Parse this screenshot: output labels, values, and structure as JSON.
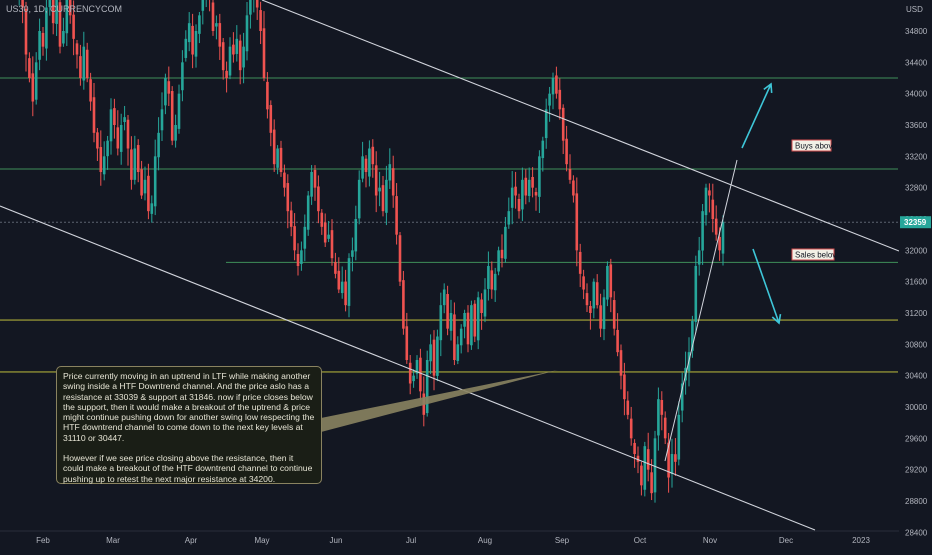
{
  "chart_data": {
    "type": "candlestick",
    "symbol_label": "US30, 1D, CURRENCYCOM",
    "currency": "USD",
    "ylim": [
      27800,
      35150
    ],
    "y_ticks": [
      28000,
      28400,
      28800,
      29200,
      29600,
      30000,
      30400,
      30800,
      31200,
      31600,
      32000,
      32400,
      32800,
      33200,
      33600,
      34000,
      34400,
      34800
    ],
    "x_ticks": [
      "Feb",
      "Mar",
      "Apr",
      "May",
      "Jun",
      "Jul",
      "Aug",
      "Sep",
      "Oct",
      "Nov",
      "Dec",
      "2023"
    ],
    "last_price": "32359",
    "colors": {
      "up": "#26a69a",
      "down": "#ef5350",
      "background": "#131722",
      "level_green": "#3f8f5a",
      "level_yellow": "#8f8f34",
      "arrow": "#3ec6d8",
      "channel": "#d1d4dc"
    },
    "levels": [
      {
        "price": 34200,
        "color": "green",
        "style": "solid"
      },
      {
        "price": 33039,
        "color": "green",
        "style": "solid"
      },
      {
        "price": 32359,
        "color": "gray",
        "style": "dashed"
      },
      {
        "price": 31846,
        "color": "green",
        "style": "solid"
      },
      {
        "price": 31110,
        "color": "yellow",
        "style": "solid"
      },
      {
        "price": 30447,
        "color": "yellow",
        "style": "solid"
      }
    ],
    "closes": [
      35500,
      35800,
      35300,
      35700,
      35100,
      34500,
      34200,
      33900,
      34400,
      34800,
      34600,
      35100,
      35300,
      34900,
      35200,
      34600,
      34800,
      35300,
      35000,
      34700,
      34500,
      34200,
      34600,
      34200,
      33900,
      33500,
      33300,
      33000,
      33200,
      33400,
      33800,
      33600,
      33300,
      33600,
      33700,
      33300,
      32900,
      33300,
      33000,
      32700,
      32900,
      32500,
      32600,
      33200,
      33500,
      33800,
      34200,
      34000,
      33400,
      33600,
      34000,
      34400,
      34700,
      34900,
      34500,
      34800,
      35000,
      35300,
      35400,
      35200,
      34800,
      34900,
      34600,
      34300,
      34200,
      34600,
      34500,
      34700,
      34300,
      34600,
      35000,
      35200,
      35400,
      35100,
      34800,
      34200,
      33800,
      33500,
      33100,
      33300,
      33000,
      32800,
      32500,
      32300,
      32000,
      31800,
      32000,
      32300,
      32700,
      33000,
      32800,
      32500,
      32300,
      32100,
      32200,
      31900,
      31700,
      31500,
      31600,
      31300,
      31900,
      32000,
      32400,
      32900,
      33200,
      33000,
      33300,
      33100,
      32700,
      32800,
      32500,
      32900,
      33100,
      32700,
      32200,
      31600,
      31000,
      30600,
      30300,
      30400,
      30600,
      30200,
      29900,
      30600,
      30800,
      30400,
      30900,
      31300,
      31500,
      31000,
      31200,
      30600,
      30800,
      31000,
      31200,
      30800,
      31300,
      30900,
      31400,
      31200,
      31500,
      31800,
      31500,
      31700,
      32000,
      31900,
      32300,
      32500,
      32800,
      32700,
      32500,
      32900,
      32700,
      32900,
      32800,
      32700,
      33200,
      33400,
      33800,
      34000,
      34200,
      34000,
      33800,
      33400,
      33100,
      32900,
      32700,
      32000,
      31700,
      31500,
      31300,
      31200,
      31600,
      31300,
      31000,
      31400,
      31800,
      31400,
      31000,
      30700,
      30400,
      30100,
      29900,
      29600,
      29400,
      29300,
      29000,
      29500,
      29200,
      28900,
      29600,
      30100,
      29900,
      29600,
      29100,
      29400,
      29300,
      29900,
      30300,
      30500,
      30700,
      31100,
      31800,
      32000,
      32500,
      32800,
      32700,
      32400,
      32200,
      32000,
      32359
    ]
  },
  "annotations": {
    "buys_label": "Buys above",
    "sales_label": "Sales below",
    "note_p1": "Price currently moving in an uptrend in LTF while making another swing inside a HTF Downtrend channel. And the price aslo has a resistance at 33039 & support at 31846. now if price closes below the support, then it would make a breakout of the uptrend & price might continue pushing down for another swing low respecting the HTF downtrend channel to come down to the next key levels at 31110 or 30447.",
    "note_p2": "However if we see price closing above the resistance, then it could make a breakout of the HTF downtrend channel to continue pushing up to retest the next major resistance at 34200."
  }
}
